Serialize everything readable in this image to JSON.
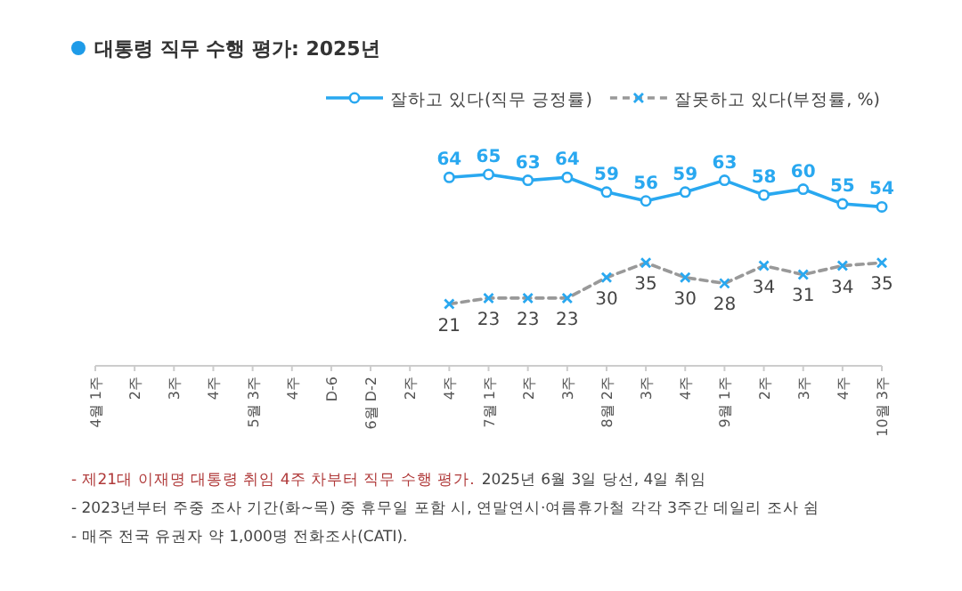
{
  "chart_data": {
    "type": "line",
    "title": "대통령 직무 수행 평가: 2025년",
    "categories": [
      "4월 1주",
      "2주",
      "3주",
      "4주",
      "5월 3주",
      "4주",
      "D-6",
      "6월 D-2",
      "2주",
      "4주",
      "7월 1주",
      "2주",
      "3주",
      "8월 2주",
      "3주",
      "4주",
      "9월 1주",
      "2주",
      "3주",
      "4주",
      "10월 3주"
    ],
    "series": [
      {
        "name": "잘하고 있다(직무 긍정률)",
        "color": "#29a8f0",
        "marker": "circle",
        "line_style": "solid",
        "values": [
          null,
          null,
          null,
          null,
          null,
          null,
          null,
          null,
          null,
          64,
          65,
          63,
          64,
          59,
          56,
          59,
          63,
          58,
          60,
          55,
          54
        ]
      },
      {
        "name": "잘못하고 있다(부정률, %)",
        "color": "#29a8f0",
        "marker": "cross",
        "line_style": "dashed",
        "values": [
          null,
          null,
          null,
          null,
          null,
          null,
          null,
          null,
          null,
          21,
          23,
          23,
          23,
          30,
          35,
          30,
          28,
          34,
          31,
          34,
          35
        ]
      }
    ],
    "data_labels": true,
    "legend": "top right",
    "annotations": [
      "- 제21대 이재명 대통령 취임 4주 차부터 직무 수행 평가.",
      "2025년 6월 3일 당선, 4일 취임",
      "- 2023년부터 주중 조사 기간(화~목) 중 휴무일 포함 시, 연말연시·여름휴가철 각각 3주간 데일리 조사 쉼",
      "- 매주 전국 유권자 약 1,000명 전화조사(CATI)."
    ]
  }
}
